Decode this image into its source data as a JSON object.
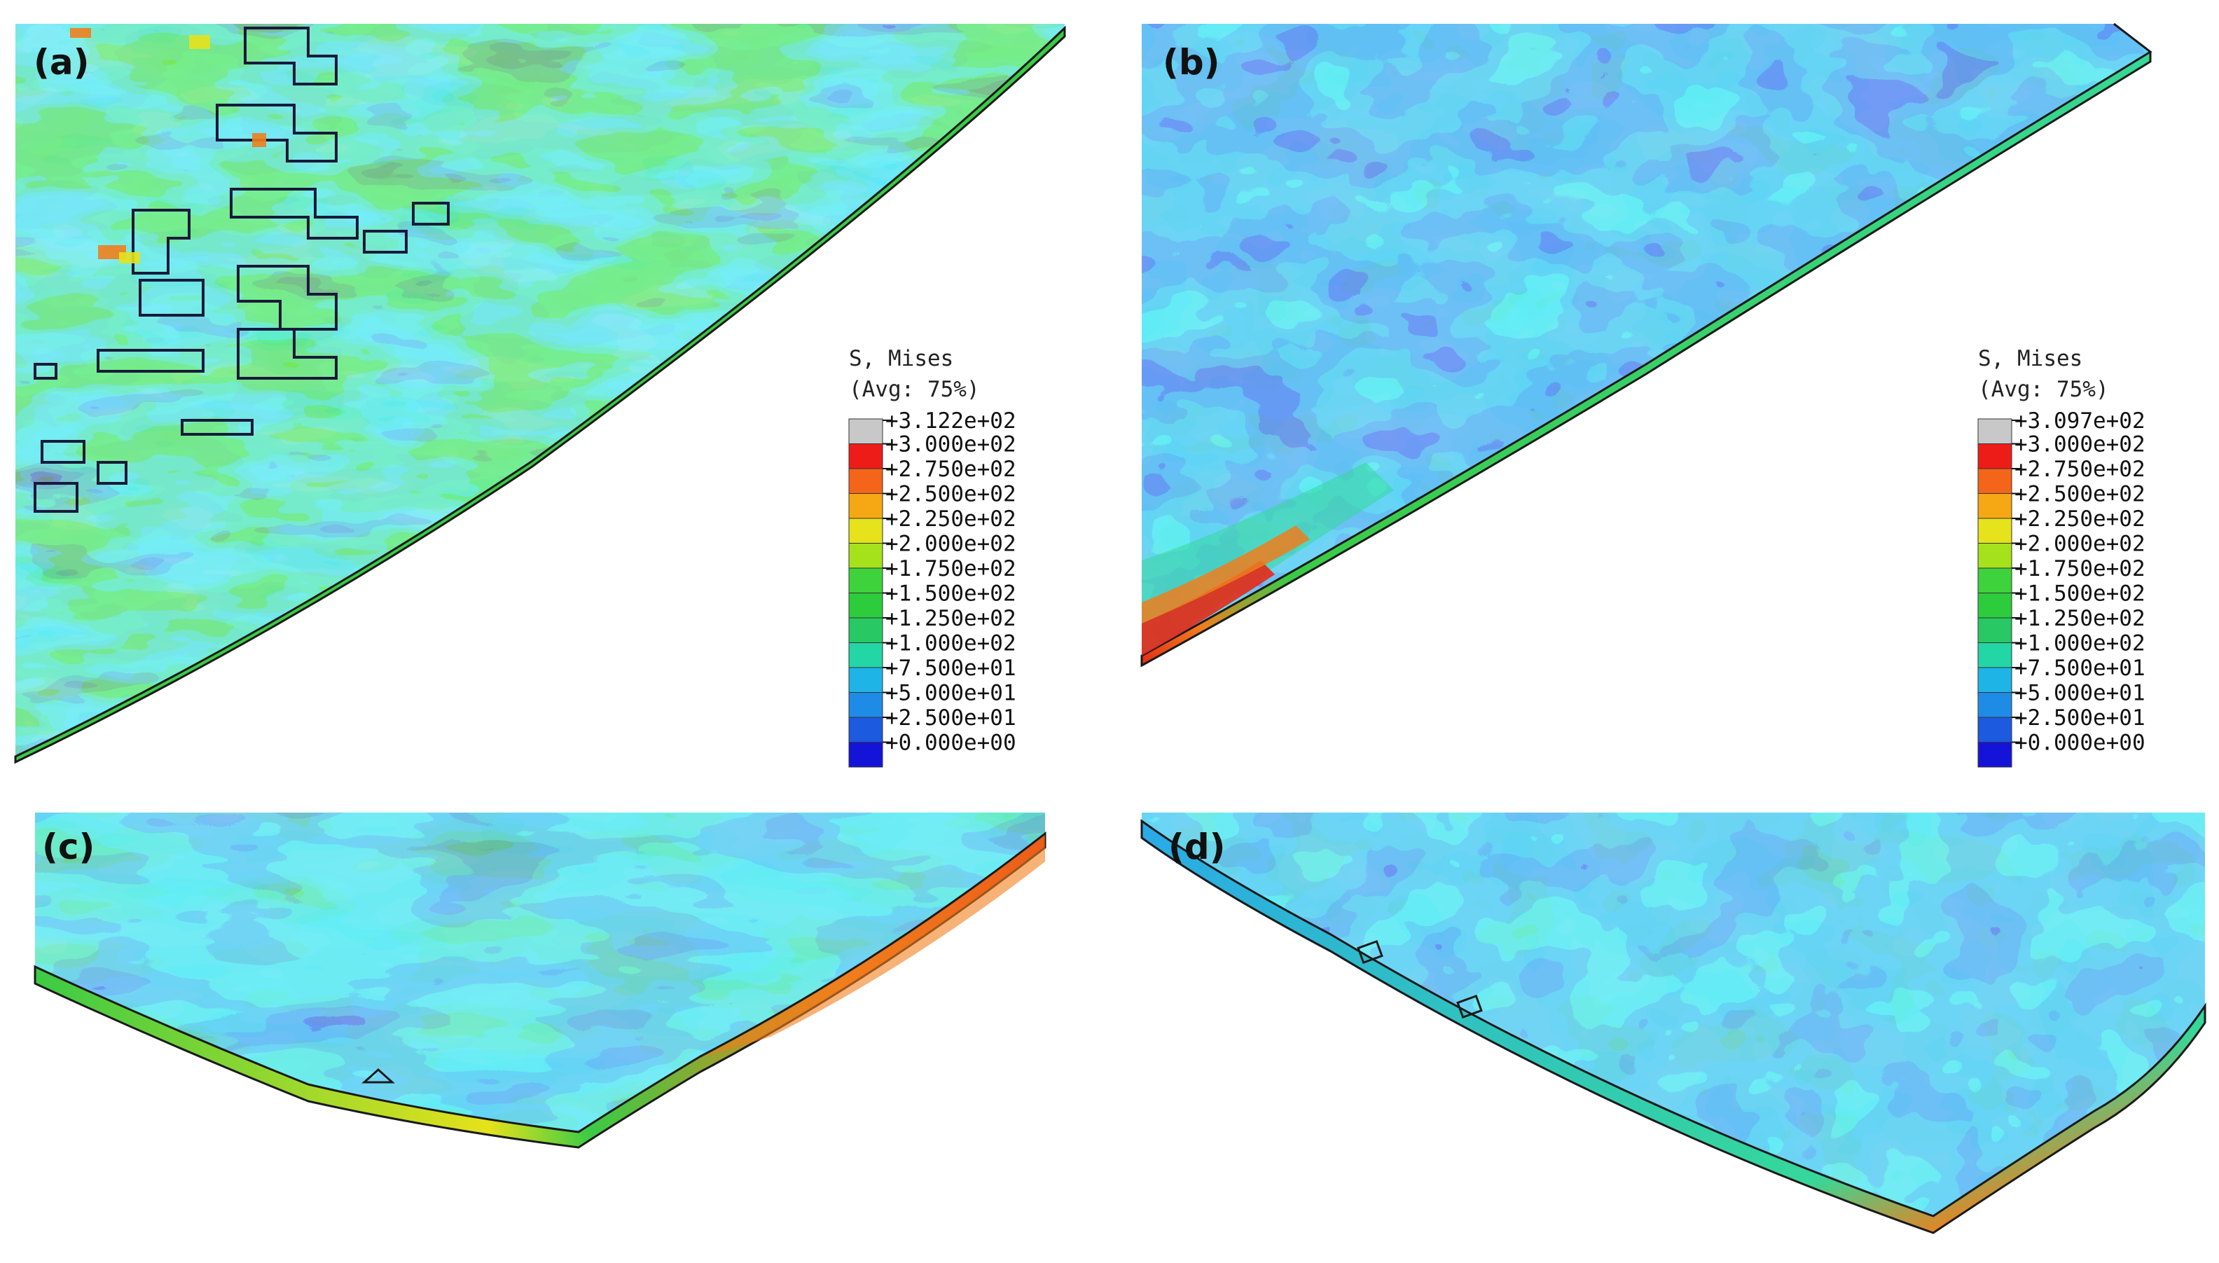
{
  "panels": [
    {
      "id": "a",
      "label": "(a)",
      "legend": {
        "title_line1": "S, Mises",
        "title_line2": "(Avg: 75%)",
        "ticks": [
          "+3.122e+02",
          "+3.000e+02",
          "+2.750e+02",
          "+2.500e+02",
          "+2.250e+02",
          "+2.000e+02",
          "+1.750e+02",
          "+1.500e+02",
          "+1.250e+02",
          "+1.000e+02",
          "+7.500e+01",
          "+5.000e+01",
          "+2.500e+01",
          "+0.000e+00"
        ]
      }
    },
    {
      "id": "b",
      "label": "(b)",
      "legend": {
        "title_line1": "S, Mises",
        "title_line2": "(Avg: 75%)",
        "ticks": [
          "+3.097e+02",
          "+3.000e+02",
          "+2.750e+02",
          "+2.500e+02",
          "+2.250e+02",
          "+2.000e+02",
          "+1.750e+02",
          "+1.500e+02",
          "+1.250e+02",
          "+1.000e+02",
          "+7.500e+01",
          "+5.000e+01",
          "+2.500e+01",
          "+0.000e+00"
        ]
      }
    },
    {
      "id": "c",
      "label": "(c)"
    },
    {
      "id": "d",
      "label": "(d)"
    }
  ],
  "colorbar_colors": [
    "#c8c8c8",
    "#ee1c18",
    "#f4651a",
    "#f5a814",
    "#e6e21c",
    "#a6e21c",
    "#3ed23c",
    "#2ccc3c",
    "#28c864",
    "#22d6a6",
    "#1eb4e6",
    "#1e8ce6",
    "#1c5ae0",
    "#1414d8"
  ],
  "colors": {
    "dark_blue": "#1e4fd6",
    "mid_blue": "#2586e4",
    "light_blue": "#2aa9e8",
    "cyan": "#2ed3cf",
    "teal_green": "#35d89a",
    "green": "#3acb45",
    "yellow": "#e5e21b",
    "orange": "#f07e1c",
    "red": "#e62a17"
  }
}
